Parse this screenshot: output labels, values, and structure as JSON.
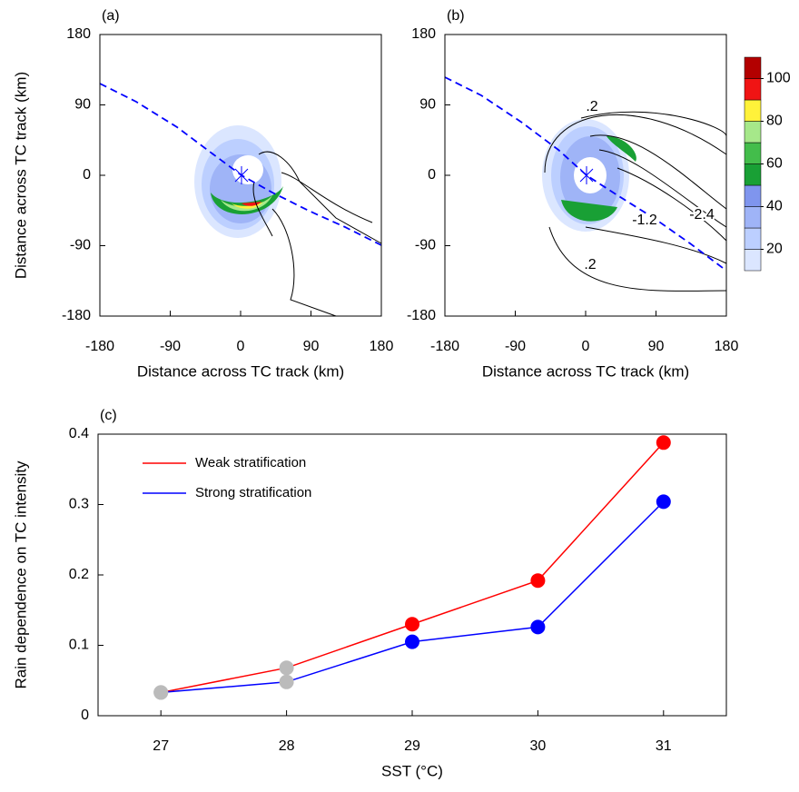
{
  "chart_data": [
    {
      "type": "contour",
      "panel_label": "(a)",
      "x_label": "Distance across TC track (km)",
      "y_label": "Distance across TC track (km)",
      "xlim": [
        -180,
        180
      ],
      "ylim": [
        -180,
        180
      ],
      "xticks": [
        -180,
        -90,
        0,
        90,
        180
      ],
      "yticks": [
        -180,
        -90,
        0,
        90,
        180
      ]
    },
    {
      "type": "contour",
      "panel_label": "(b)",
      "x_label": "Distance across TC track (km)",
      "xlim": [
        -180,
        180
      ],
      "ylim": [
        -180,
        180
      ],
      "xticks": [
        -180,
        -90,
        0,
        90,
        180
      ],
      "yticks": [
        -180,
        -90,
        0,
        90,
        180
      ],
      "contour_labels": [
        ".2",
        ".2",
        "-1.2",
        "-2.4"
      ],
      "colorbar": {
        "lim": [
          10,
          110
        ],
        "ticks": [
          20,
          40,
          60,
          80,
          100
        ],
        "colors": [
          "#dbe6ff",
          "#bccfff",
          "#9fb4f7",
          "#7f95ee",
          "#19a035",
          "#43bd4b",
          "#a6e88a",
          "#fff23a",
          "#f01414",
          "#b30000"
        ]
      }
    },
    {
      "type": "line",
      "panel_label": "(c)",
      "x_label": "SST (°C)",
      "y_label": "Rain dependence on TC intensity",
      "x": [
        27,
        28,
        29,
        30,
        31
      ],
      "xlim": [
        26.5,
        31.5
      ],
      "ylim": [
        0,
        0.4
      ],
      "xticks": [
        27,
        28,
        29,
        30,
        31
      ],
      "yticks": [
        0,
        0.1,
        0.2,
        0.3,
        0.4
      ],
      "legend": "upper left",
      "series": [
        {
          "name": "Weak stratification",
          "color": "#ff0000",
          "values": [
            0.033,
            0.068,
            0.13,
            0.192,
            0.388
          ],
          "marker_colors": [
            "#bbbbbb",
            "#bbbbbb",
            "#ff0000",
            "#ff0000",
            "#ff0000"
          ]
        },
        {
          "name": "Strong stratification",
          "color": "#0000ff",
          "values": [
            0.033,
            0.048,
            0.105,
            0.126,
            0.304
          ],
          "marker_colors": [
            "#bbbbbb",
            "#bbbbbb",
            "#0000ff",
            "#0000ff",
            "#0000ff"
          ]
        }
      ]
    }
  ]
}
